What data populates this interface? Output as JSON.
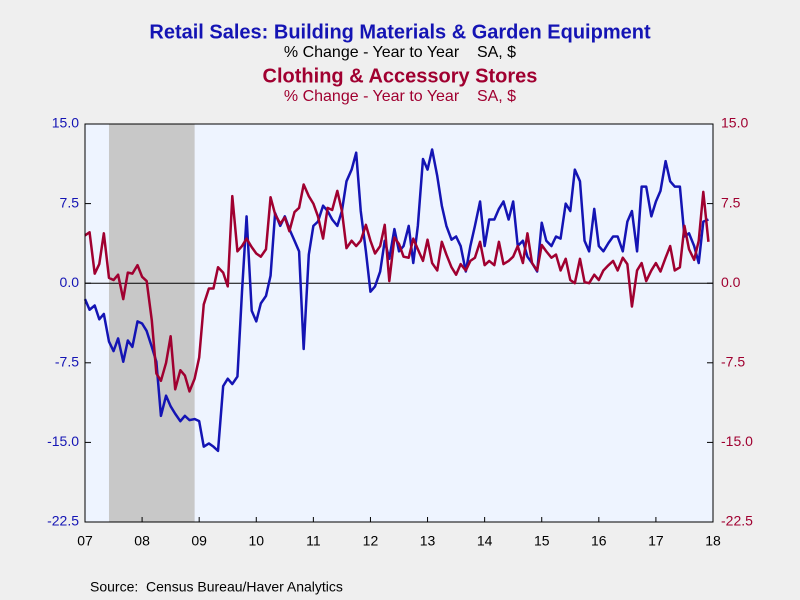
{
  "chart_data": {
    "type": "line",
    "series": [
      {
        "name": "Retail Sales: Building Materials & Garden Equipment",
        "subtitle": "% Change - Year to Year    SA, $",
        "color": "#1414b4",
        "axis": "y",
        "values": [
          -1.5,
          -2.5,
          -2.1,
          -3.4,
          -2.9,
          -5.5,
          -6.4,
          -5.2,
          -7.4,
          -5.4,
          -6,
          -3.6,
          -3.8,
          -4.5,
          -6,
          -7.4,
          -12.5,
          -10.6,
          -11.6,
          -12.3,
          -13,
          -12.5,
          -12.9,
          -12.8,
          -13,
          -15.4,
          -15.1,
          -15.4,
          -15.8,
          -9.7,
          -9,
          -9.5,
          -8.8,
          -0.8,
          6.3,
          -2.6,
          -3.6,
          -1.9,
          -1.2,
          0.7,
          6.6,
          5.4,
          6.3,
          5.1,
          4,
          3,
          -6.2,
          2.7,
          5.4,
          5.8,
          7.3,
          6.8,
          6,
          5.4,
          6.8,
          9.6,
          10.7,
          12.3,
          6.8,
          3,
          -0.8,
          -0.3,
          1.1,
          4,
          2.3,
          5.1,
          3,
          3.5,
          5.4,
          1.9,
          5.4,
          11.7,
          10.7,
          12.6,
          10.1,
          7.3,
          5.4,
          4.1,
          4.4,
          3.5,
          1.1,
          3.5,
          5.4,
          7.7,
          3.5,
          6,
          6,
          7,
          7.7,
          6,
          7.7,
          3.5,
          4,
          2.5,
          1.9,
          1.1,
          5.7,
          4,
          3.5,
          4.4,
          4.2,
          7.5,
          6.8,
          10.7,
          9.6,
          4,
          3,
          7,
          3.5,
          3,
          3.8,
          4.4,
          4.4,
          3,
          5.8,
          6.8,
          3,
          9.1,
          9.1,
          6.3,
          7.7,
          8.7,
          11.5,
          9.6,
          9.1,
          9.1,
          4.4,
          4.7,
          3.5,
          1.9,
          5.8,
          6
        ]
      },
      {
        "name": "Clothing & Accessory Stores",
        "subtitle": "% Change - Year to Year    SA, $",
        "color": "#a00030",
        "axis": "y2",
        "values": [
          4.5,
          4.8,
          0.9,
          1.8,
          4.7,
          0.5,
          0.3,
          0.8,
          -1.5,
          1.0,
          0.9,
          1.7,
          0.6,
          0.2,
          -3.5,
          -8.5,
          -9.2,
          -7.5,
          -5,
          -10,
          -8.2,
          -8.7,
          -10.2,
          -9,
          -7,
          -2,
          -0.5,
          -0.5,
          1.5,
          1,
          -0.3,
          8.2,
          3,
          3.5,
          4.2,
          3.4,
          2.8,
          2.5,
          3.2,
          8.1,
          6.5,
          5.6,
          6.2,
          4.9,
          6.7,
          7.1,
          9.3,
          8.2,
          7.5,
          6.3,
          4.2,
          7.1,
          6.9,
          8.7,
          6.8,
          3.3,
          4.0,
          3.5,
          4.0,
          5.5,
          4.0,
          2.8,
          3.5,
          5.5,
          0.2,
          4.3,
          3.7,
          2.5,
          2.4,
          4.2,
          3.2,
          2.1,
          4.1,
          1.9,
          1.2,
          3.9,
          2.7,
          1.5,
          0.8,
          1.8,
          1.2,
          2.1,
          2.4,
          3.9,
          1.7,
          2.1,
          1.7,
          3.9,
          1.8,
          2.1,
          2.5,
          3.5,
          1.9,
          4.7,
          1.9,
          1.2,
          3.6,
          3.0,
          2.4,
          2.7,
          1.2,
          2.3,
          0.3,
          0,
          2.3,
          0.1,
          0,
          0.8,
          0.3,
          1.2,
          1.7,
          2.1,
          1.2,
          2.4,
          1.8,
          -2.2,
          1.2,
          1.9,
          0.2,
          1.2,
          1.9,
          1.1,
          2.4,
          3.5,
          1.2,
          1.5,
          5.4,
          3.2,
          2.2,
          4.0,
          8.6,
          3.9
        ]
      }
    ],
    "x": [
      2007.5,
      2007.58,
      2007.67,
      2007.75,
      2007.83,
      2007.92,
      2008,
      2008.08,
      2008.17,
      2008.25,
      2008.33,
      2008.42,
      2008.5,
      2008.58,
      2008.67,
      2008.75,
      2008.83,
      2008.92,
      2009,
      2009.08,
      2009.17,
      2009.25,
      2009.33,
      2009.42,
      2009.5,
      2009.58,
      2009.67,
      2009.75,
      2009.83,
      2009.92,
      2010,
      2010.08,
      2010.17,
      2010.25,
      2010.33,
      2010.42,
      2010.5,
      2010.58,
      2010.67,
      2010.75,
      2010.83,
      2010.92,
      2011,
      2011.08,
      2011.17,
      2011.25,
      2011.33,
      2011.42,
      2011.5,
      2011.58,
      2011.67,
      2011.75,
      2011.83,
      2011.92,
      2012,
      2012.08,
      2012.17,
      2012.25,
      2012.33,
      2012.42,
      2012.5,
      2012.58,
      2012.67,
      2012.75,
      2012.83,
      2012.92,
      2013,
      2013.08,
      2013.17,
      2013.25,
      2013.33,
      2013.42,
      2013.5,
      2013.58,
      2013.67,
      2013.75,
      2013.83,
      2013.92,
      2014,
      2014.08,
      2014.17,
      2014.25,
      2014.33,
      2014.42,
      2014.5,
      2014.58,
      2014.67,
      2014.75,
      2014.83,
      2014.92,
      2015,
      2015.08,
      2015.17,
      2015.25,
      2015.33,
      2015.42,
      2015.5,
      2015.58,
      2015.67,
      2015.75,
      2015.83,
      2015.92,
      2016,
      2016.08,
      2016.17,
      2016.25,
      2016.33,
      2016.42,
      2016.5,
      2016.58,
      2016.67,
      2016.75,
      2016.83,
      2016.92,
      2017,
      2017.08,
      2017.17,
      2017.25,
      2017.33,
      2017.42,
      2017.5,
      2017.58,
      2017.67,
      2017.75,
      2017.83,
      2017.92,
      2018,
      2018.08,
      2018.17,
      2018.25,
      2018.33,
      2018.42
    ],
    "xlim": [
      2007.5,
      2018.5
    ],
    "xticks": [
      {
        "value": 2007.5,
        "label": "07"
      },
      {
        "value": 2008.5,
        "label": "08"
      },
      {
        "value": 2009.5,
        "label": "09"
      },
      {
        "value": 2010.5,
        "label": "10"
      },
      {
        "value": 2011.5,
        "label": "11"
      },
      {
        "value": 2012.5,
        "label": "12"
      },
      {
        "value": 2013.5,
        "label": "13"
      },
      {
        "value": 2014.5,
        "label": "14"
      },
      {
        "value": 2015.5,
        "label": "15"
      },
      {
        "value": 2016.5,
        "label": "16"
      },
      {
        "value": 2017.5,
        "label": "17"
      },
      {
        "value": 2018.5,
        "label": "18"
      }
    ],
    "ylim": [
      -22.5,
      15
    ],
    "yticks": [
      {
        "value": 15,
        "label": "15.0"
      },
      7.5,
      {
        "value": 0,
        "label": "0.0"
      },
      -7.5,
      {
        "value": -15,
        "label": "-15.0"
      },
      -22.5
    ],
    "y2lim": [
      -22.5,
      15
    ],
    "y2ticks": [
      {
        "value": 15,
        "label": "15.0"
      },
      7.5,
      {
        "value": 0,
        "label": "0.0"
      },
      -7.5,
      {
        "value": -15,
        "label": "-15.0"
      },
      -22.5
    ],
    "recession": [
      2007.92,
      2009.42
    ],
    "source": "Source:  Census Bureau/Haver Analytics"
  }
}
